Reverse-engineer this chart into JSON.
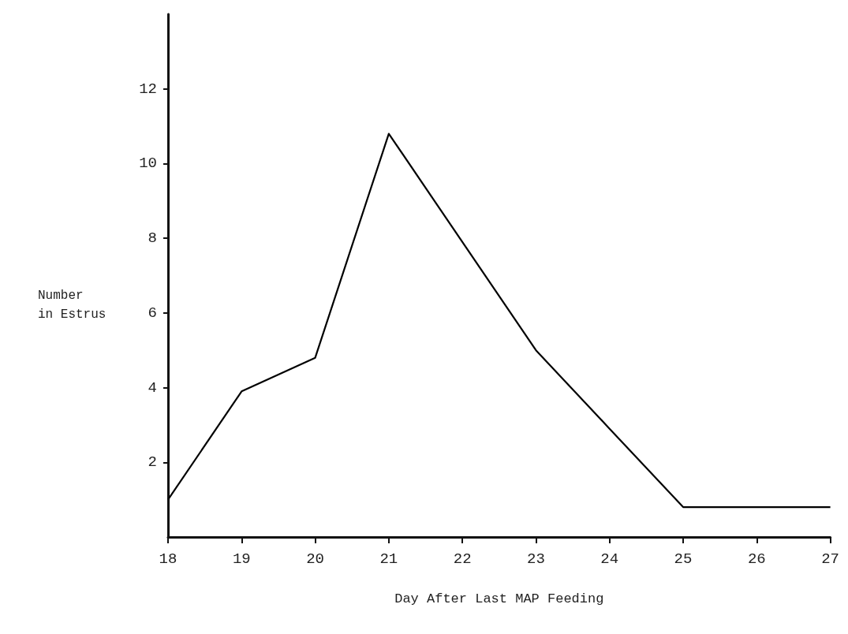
{
  "chart_data": {
    "type": "line",
    "xlabel": "Day After Last MAP Feeding",
    "ylabel": "Number\nin Estrus",
    "x": [
      18,
      19,
      20,
      21,
      22,
      23,
      24,
      25,
      26,
      27
    ],
    "series": [
      {
        "color": "#000000",
        "values": [
          1,
          3.9,
          4.8,
          10.8,
          7.9,
          5,
          2.9,
          0.8,
          0.8,
          0.8
        ]
      }
    ],
    "xlim": [
      18,
      27
    ],
    "ylim": [
      0,
      14
    ],
    "xticks": [
      18,
      19,
      20,
      21,
      22,
      23,
      24,
      25,
      26,
      27
    ],
    "yticks": [
      2,
      4,
      6,
      8,
      10,
      12
    ],
    "grid": false,
    "marker": "none",
    "line_style": "solid"
  }
}
